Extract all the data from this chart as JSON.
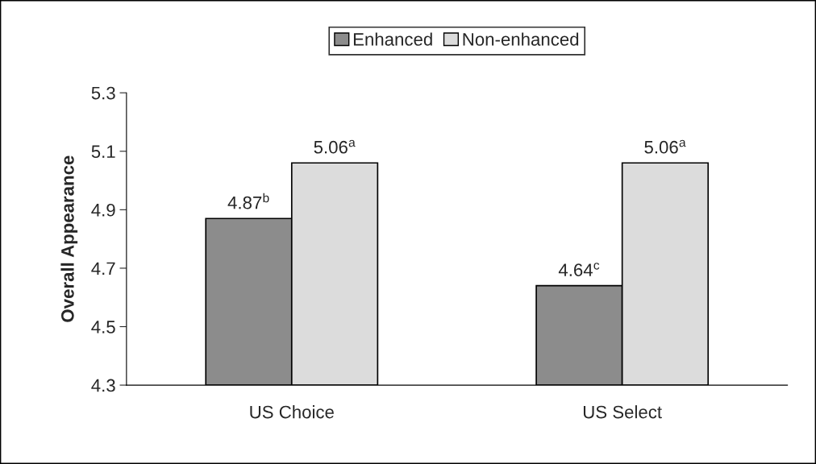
{
  "chart_data": {
    "type": "bar",
    "ylabel": "Overall Appearance",
    "categories": [
      "US Choice",
      "US Select"
    ],
    "series": [
      {
        "name": "Enhanced",
        "color": "#8c8c8c",
        "values": [
          4.87,
          4.64
        ],
        "value_labels": [
          "4.87$^{b}$",
          "4.64$^{c}$"
        ]
      },
      {
        "name": "Non-enhanced",
        "color": "#dcdcdc",
        "values": [
          5.06,
          5.06
        ],
        "value_labels": [
          "5.06$^{a}$",
          "5.06$^{a}$"
        ]
      }
    ],
    "ylim": [
      4.3,
      5.3
    ],
    "yticks": [
      4.3,
      4.5,
      4.7,
      4.9,
      5.1,
      5.3
    ],
    "grid": false,
    "legend": "top"
  }
}
